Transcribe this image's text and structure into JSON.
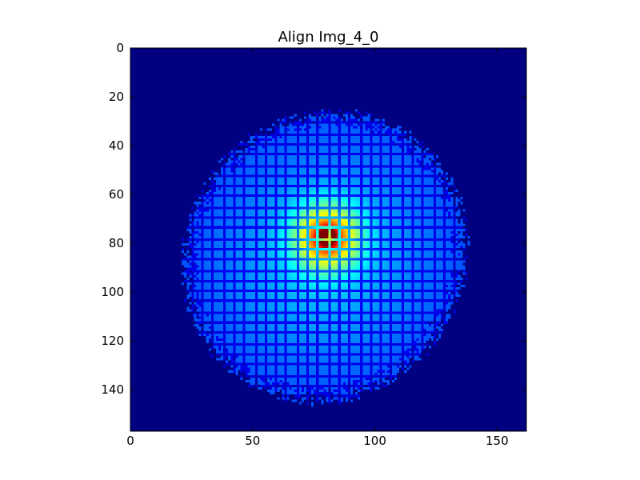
{
  "chart_data": {
    "type": "heatmap",
    "title": "Align Img_4_0",
    "xlabel": "",
    "ylabel": "",
    "xlim": [
      0,
      162
    ],
    "ylim": [
      157,
      0
    ],
    "y_axis_inverted": true,
    "x_ticks": [
      0,
      50,
      100,
      150
    ],
    "x_tick_labels": [
      "0",
      "50",
      "100",
      "150"
    ],
    "y_ticks": [
      0,
      20,
      40,
      60,
      80,
      100,
      120,
      140
    ],
    "y_tick_labels": [
      "0",
      "20",
      "40",
      "60",
      "80",
      "100",
      "120",
      "140"
    ],
    "colormap": "jet",
    "background_color": "#00007f",
    "grid": false,
    "legend": "none",
    "image": {
      "width": 162,
      "height": 157,
      "peak_center": [
        80,
        77
      ],
      "blob_center": [
        79,
        85
      ],
      "blob_semi_axes": [
        56,
        60
      ],
      "blob_rotation_deg": -35,
      "lattice_pitch": 4.3,
      "lattice_phase": [
        1.5,
        0.2
      ],
      "description_values": {
        "peak_intensity": 1.0,
        "background_intensity": 0.0
      }
    }
  }
}
